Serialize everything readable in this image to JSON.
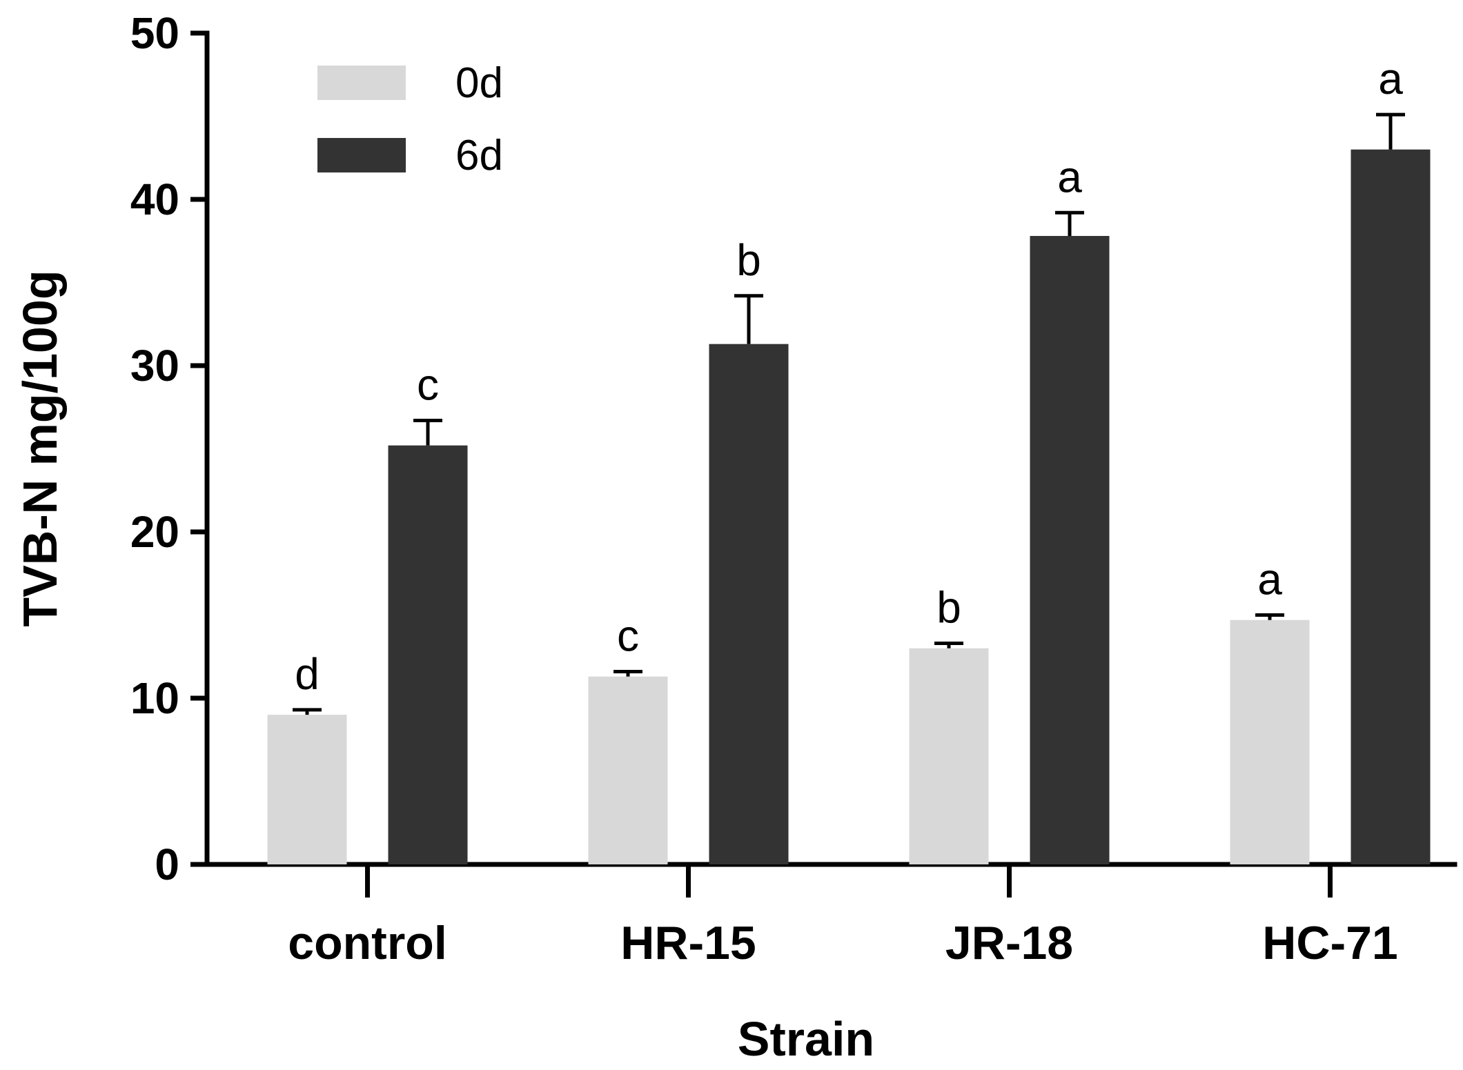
{
  "chart_data": {
    "type": "bar",
    "title": "",
    "xlabel": "Strain",
    "ylabel": "TVB-N mg/100g",
    "ylim": [
      0,
      50
    ],
    "yticks": [
      0,
      10,
      20,
      30,
      40,
      50
    ],
    "categories": [
      "control",
      "HR-15",
      "JR-18",
      "HC-71"
    ],
    "legend_position": "top-left",
    "series": [
      {
        "name": "0d",
        "color": "#d8d8d8",
        "values": [
          9.0,
          11.3,
          13.0,
          14.7
        ],
        "errors": [
          0.3,
          0.3,
          0.3,
          0.3
        ],
        "letters": [
          "d",
          "c",
          "b",
          "a"
        ]
      },
      {
        "name": "6d",
        "color": "#333333",
        "values": [
          25.2,
          31.3,
          37.8,
          43.0
        ],
        "errors": [
          1.5,
          2.9,
          1.4,
          2.1
        ],
        "letters": [
          "c",
          "b",
          "a",
          "a"
        ]
      }
    ]
  }
}
